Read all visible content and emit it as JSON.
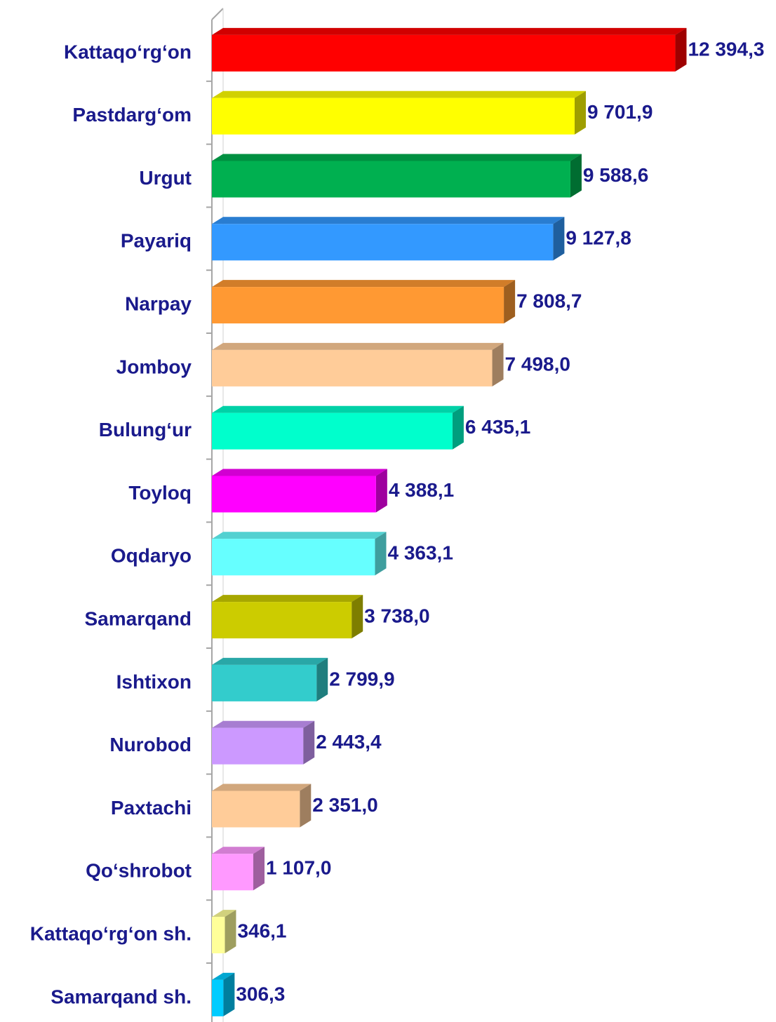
{
  "chart_data": {
    "type": "bar",
    "orientation": "horizontal",
    "categories": [
      "Kattaqo‘rg‘on",
      "Pastdarg‘om",
      "Urgut",
      "Payariq",
      "Narpay",
      "Jomboy",
      "Bulung‘ur",
      "Toyloq",
      "Oqdaryo",
      "Samarqand",
      "Ishtixon",
      "Nurobod",
      "Paxtachi",
      "Qo‘shrobot",
      "Kattaqo‘rg‘on sh.",
      "Samarqand sh."
    ],
    "values": [
      12394.3,
      9701.9,
      9588.6,
      9127.8,
      7808.7,
      7498.0,
      6435.1,
      4388.1,
      4363.1,
      3738.0,
      2799.9,
      2443.4,
      2351.0,
      1107.0,
      346.1,
      306.3
    ],
    "value_labels": [
      "12 394,3",
      "9 701,9",
      "9 588,6",
      "9 127,8",
      "7 808,7",
      "7 498,0",
      "6 435,1",
      "4 388,1",
      "4 363,1",
      "3 738,0",
      "2 799,9",
      "2 443,4",
      "2 351,0",
      "1 107,0",
      "346,1",
      "306,3"
    ],
    "colors": [
      "#ff0000",
      "#ffff00",
      "#00b050",
      "#3399ff",
      "#ff9933",
      "#ffcc99",
      "#00ffcc",
      "#ff00ff",
      "#66ffff",
      "#cccc00",
      "#33cccc",
      "#cc99ff",
      "#ffcc99",
      "#ff99ff",
      "#ffff99",
      "#00ccff"
    ],
    "xlim": [
      0,
      14000
    ]
  }
}
